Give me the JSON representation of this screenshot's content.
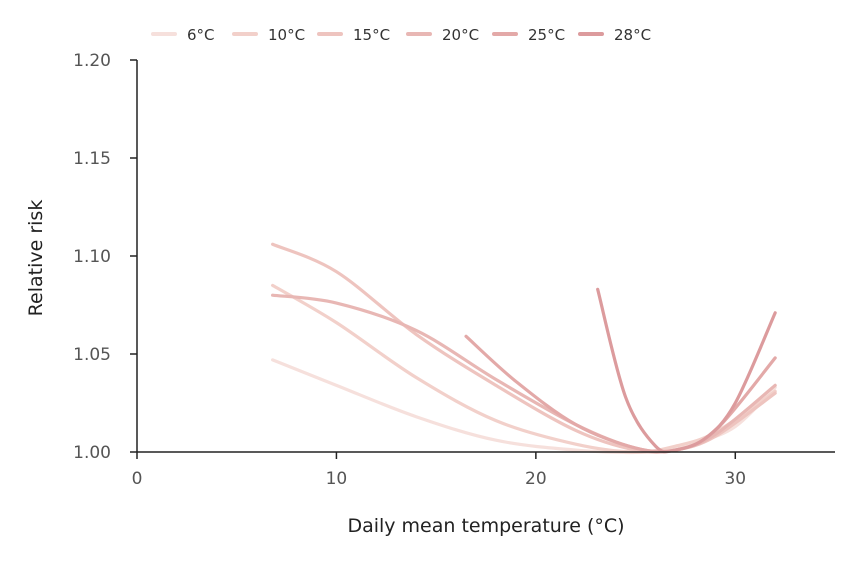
{
  "chart_data": {
    "type": "line",
    "title": "",
    "xlabel": "Daily mean temperature (°C)",
    "ylabel": "Relative risk",
    "xlim": [
      0,
      35
    ],
    "ylim": [
      1.0,
      1.2
    ],
    "xticks": [
      0,
      10,
      20,
      30
    ],
    "xtick_labels": [
      "0",
      "10",
      "20",
      "30"
    ],
    "yticks": [
      1.0,
      1.05,
      1.1,
      1.15,
      1.2
    ],
    "ytick_labels": [
      "1.00",
      "1.05",
      "1.10",
      "1.15",
      "1.20"
    ],
    "grid": false,
    "legend_position": "top",
    "series": [
      {
        "name": "6°C",
        "color": "#f6e0dc",
        "x": [
          6.8,
          10,
          14,
          18,
          22,
          25.5,
          28,
          30,
          32
        ],
        "y": [
          1.047,
          1.034,
          1.018,
          1.006,
          1.001,
          1.0,
          1.005,
          1.013,
          1.033
        ]
      },
      {
        "name": "10°C",
        "color": "#f2d0ca",
        "x": [
          6.8,
          10,
          14,
          18,
          22,
          25,
          27,
          29,
          32
        ],
        "y": [
          1.085,
          1.066,
          1.038,
          1.016,
          1.004,
          1.0,
          1.003,
          1.01,
          1.031
        ]
      },
      {
        "name": "15°C",
        "color": "#eec4bf",
        "x": [
          6.8,
          10,
          14,
          18,
          22,
          25,
          27,
          29,
          32
        ],
        "y": [
          1.106,
          1.092,
          1.06,
          1.034,
          1.011,
          1.001,
          1.001,
          1.008,
          1.03
        ]
      },
      {
        "name": "20°C",
        "color": "#e8b7b4",
        "x": [
          6.8,
          10,
          14,
          18,
          22,
          25,
          27,
          29,
          32
        ],
        "y": [
          1.08,
          1.076,
          1.062,
          1.037,
          1.014,
          1.002,
          1.001,
          1.009,
          1.034
        ]
      },
      {
        "name": "25°C",
        "color": "#e3a9a8",
        "x": [
          16.5,
          19,
          22,
          25,
          27,
          29,
          32
        ],
        "y": [
          1.059,
          1.036,
          1.014,
          1.002,
          1.001,
          1.011,
          1.048
        ]
      },
      {
        "name": "28°C",
        "color": "#dc9b9d",
        "x": [
          23.1,
          24.5,
          26,
          27,
          28.5,
          30,
          32
        ],
        "y": [
          1.083,
          1.028,
          1.003,
          1.001,
          1.007,
          1.025,
          1.071
        ]
      }
    ]
  }
}
